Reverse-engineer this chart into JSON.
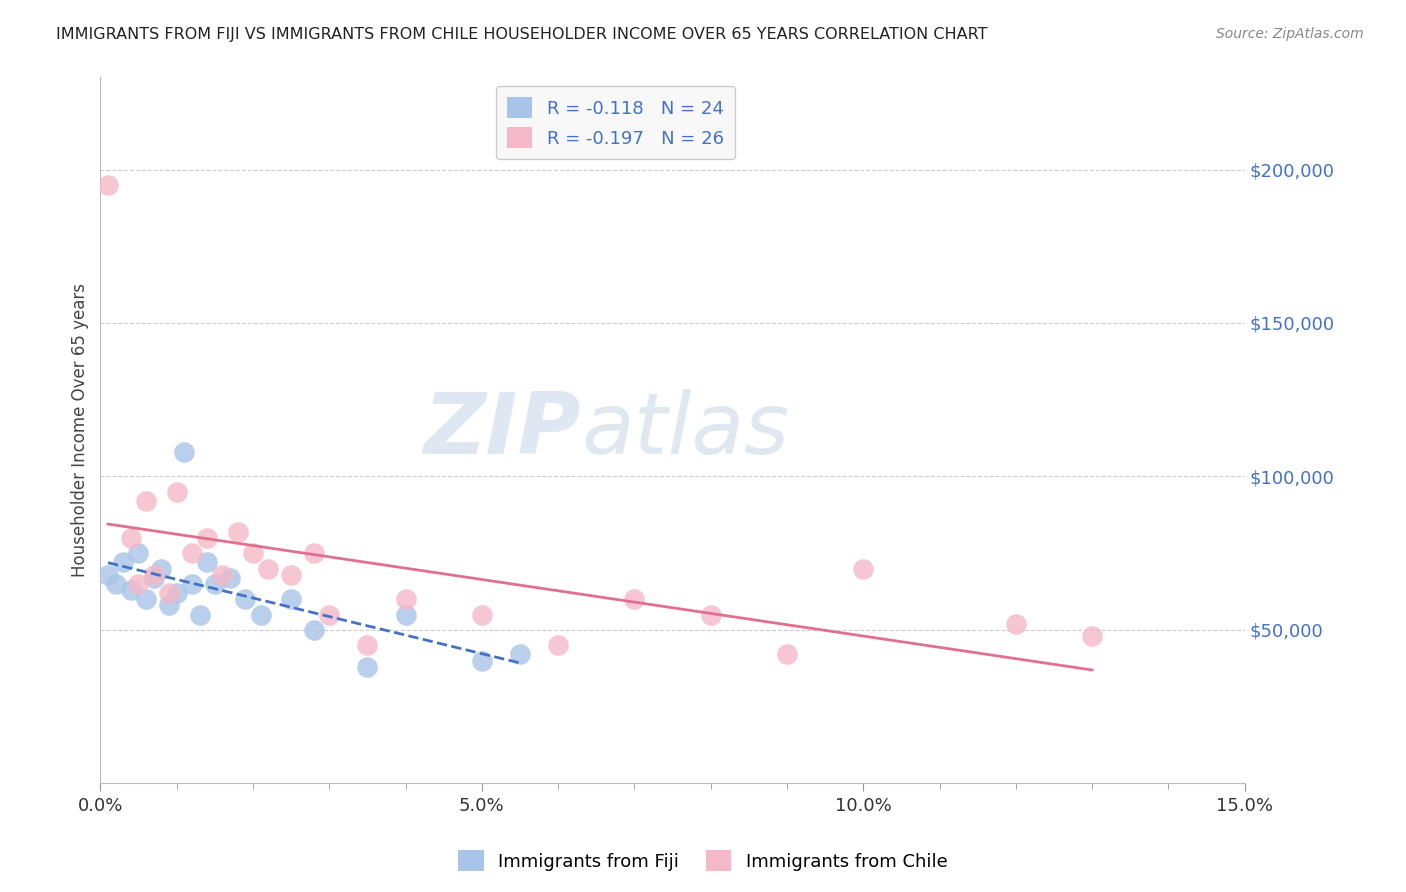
{
  "title": "IMMIGRANTS FROM FIJI VS IMMIGRANTS FROM CHILE HOUSEHOLDER INCOME OVER 65 YEARS CORRELATION CHART",
  "source": "Source: ZipAtlas.com",
  "ylabel": "Householder Income Over 65 years",
  "xlim": [
    0.0,
    0.15
  ],
  "ylim": [
    0,
    230000
  ],
  "ytick_vals": [
    50000,
    100000,
    150000,
    200000
  ],
  "ytick_labels": [
    "$50,000",
    "$100,000",
    "$150,000",
    "$200,000"
  ],
  "fiji_color": "#a8c4e8",
  "chile_color": "#f5b8c8",
  "fiji_line_color": "#4472c4",
  "chile_line_color": "#e07090",
  "fiji_R": -0.118,
  "fiji_N": 24,
  "chile_R": -0.197,
  "chile_N": 26,
  "watermark_zip": "ZIP",
  "watermark_atlas": "atlas",
  "legend_fiji": "Immigrants from Fiji",
  "legend_chile": "Immigrants from Chile",
  "fiji_x": [
    0.001,
    0.002,
    0.003,
    0.004,
    0.005,
    0.006,
    0.007,
    0.008,
    0.009,
    0.01,
    0.011,
    0.012,
    0.013,
    0.014,
    0.015,
    0.017,
    0.019,
    0.021,
    0.025,
    0.028,
    0.035,
    0.04,
    0.05,
    0.055
  ],
  "fiji_y": [
    68000,
    65000,
    72000,
    63000,
    75000,
    60000,
    67000,
    70000,
    58000,
    62000,
    108000,
    65000,
    55000,
    72000,
    65000,
    67000,
    60000,
    55000,
    60000,
    50000,
    38000,
    55000,
    40000,
    42000
  ],
  "chile_x": [
    0.001,
    0.004,
    0.005,
    0.006,
    0.007,
    0.009,
    0.01,
    0.012,
    0.014,
    0.016,
    0.018,
    0.02,
    0.022,
    0.025,
    0.028,
    0.03,
    0.035,
    0.04,
    0.05,
    0.06,
    0.07,
    0.08,
    0.09,
    0.1,
    0.12,
    0.13
  ],
  "chile_y": [
    195000,
    80000,
    65000,
    92000,
    68000,
    62000,
    95000,
    75000,
    80000,
    68000,
    82000,
    75000,
    70000,
    68000,
    75000,
    55000,
    45000,
    60000,
    55000,
    45000,
    60000,
    55000,
    42000,
    70000,
    52000,
    48000
  ],
  "background_color": "#ffffff",
  "grid_color": "#cccccc",
  "title_color": "#222222",
  "axis_label_color": "#444444",
  "ytick_color": "#4472c4",
  "legend_box_color": "#f8f8f8"
}
